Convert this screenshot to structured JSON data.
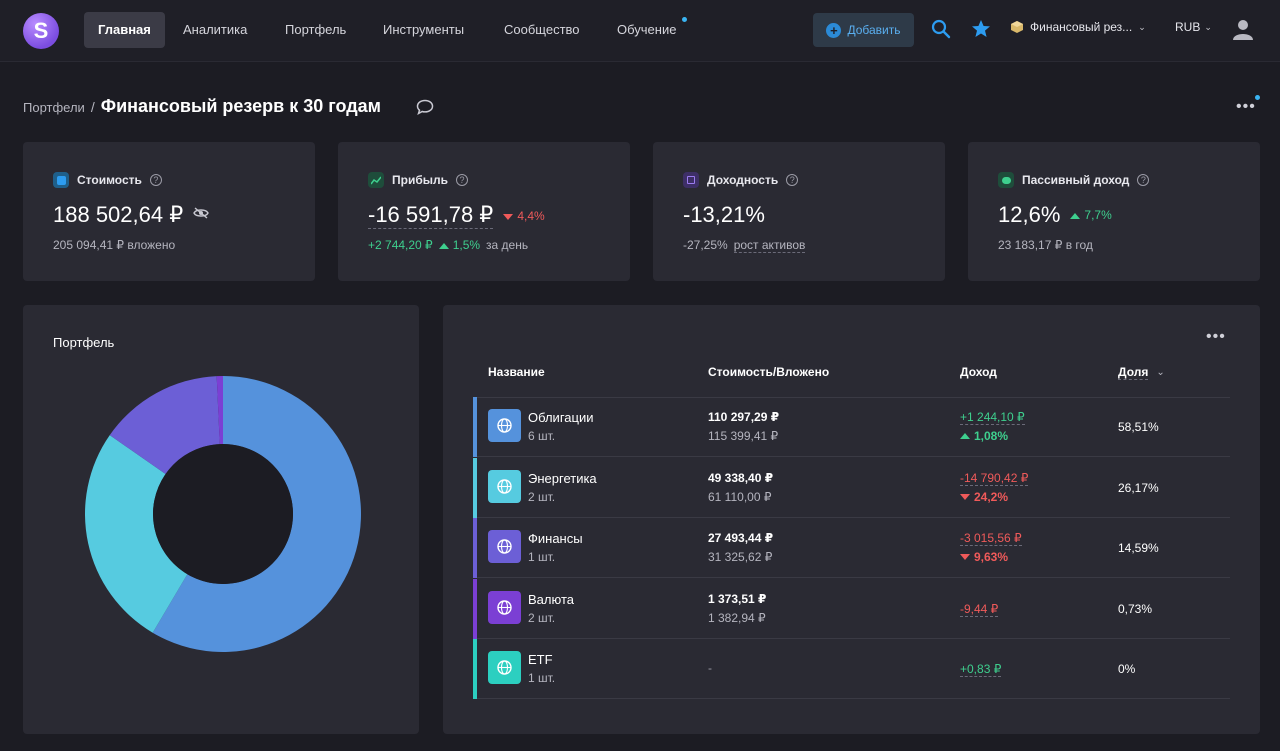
{
  "nav": {
    "logo_letter": "S",
    "items": [
      "Главная",
      "Аналитика",
      "Портфель",
      "Инструменты",
      "Сообщество",
      "Обучение"
    ],
    "add_label": "Добавить",
    "portfolio_label": "Финансовый рез...",
    "currency": "RUB"
  },
  "breadcrumb": {
    "parent": "Портфели",
    "separator": "/",
    "title": "Финансовый резерв к 30 годам"
  },
  "cards": {
    "value": {
      "title": "Стоимость",
      "amount": "188 502,64 ₽",
      "sub": "205 094,41 ₽ вложено"
    },
    "profit": {
      "title": "Прибыль",
      "amount": "-16 591,78 ₽",
      "delta": "4,4%",
      "sub_amount": "+2 744,20 ₽",
      "sub_pct": "1,5%",
      "sub_suffix": "за день"
    },
    "yield": {
      "title": "Доходность",
      "amount": "-13,21%",
      "sub_pct": "-27,25%",
      "sub_label": "рост активов"
    },
    "passive": {
      "title": "Пассивный доход",
      "amount": "12,6%",
      "delta": "7,7%",
      "sub": "23 183,17 ₽ в год"
    }
  },
  "portfolio_panel": {
    "title": "Портфель"
  },
  "table": {
    "headers": {
      "name": "Название",
      "value": "Стоимость/Вложено",
      "income": "Доход",
      "share": "Доля"
    },
    "rows": [
      {
        "name": "Облигации",
        "qty": "6 шт.",
        "value": "110 297,29 ₽",
        "invested": "115 399,41 ₽",
        "income": "+1 244,10 ₽",
        "income_pct": "1,08%",
        "share": "58,51%",
        "color": "#5592dc"
      },
      {
        "name": "Энергетика",
        "qty": "2 шт.",
        "value": "49 338,40 ₽",
        "invested": "61 110,00 ₽",
        "income": "-14 790,42 ₽",
        "income_pct": "24,2%",
        "share": "26,17%",
        "color": "#56cbe0"
      },
      {
        "name": "Финансы",
        "qty": "1 шт.",
        "value": "27 493,44 ₽",
        "invested": "31 325,62 ₽",
        "income": "-3 015,56 ₽",
        "income_pct": "9,63%",
        "share": "14,59%",
        "color": "#6c5fd6"
      },
      {
        "name": "Валюта",
        "qty": "2 шт.",
        "value": "1 373,51 ₽",
        "invested": "1 382,94 ₽",
        "income": "-9,44 ₽",
        "income_pct": "",
        "share": "0,73%",
        "color": "#7b3fd4"
      },
      {
        "name": "ETF",
        "qty": "1 шт.",
        "value": "-",
        "invested": "",
        "income": "+0,83 ₽",
        "income_pct": "",
        "share": "0%",
        "color": "#2ccfc0"
      }
    ]
  },
  "chart_data": {
    "type": "pie",
    "donut": true,
    "categories": [
      "Облигации",
      "Энергетика",
      "Финансы",
      "Валюта",
      "ETF"
    ],
    "values": [
      58.51,
      26.17,
      14.59,
      0.73,
      0
    ],
    "colors": [
      "#5592dc",
      "#56cbe0",
      "#6c5fd6",
      "#7b3fd4",
      "#2ccfc0"
    ]
  }
}
